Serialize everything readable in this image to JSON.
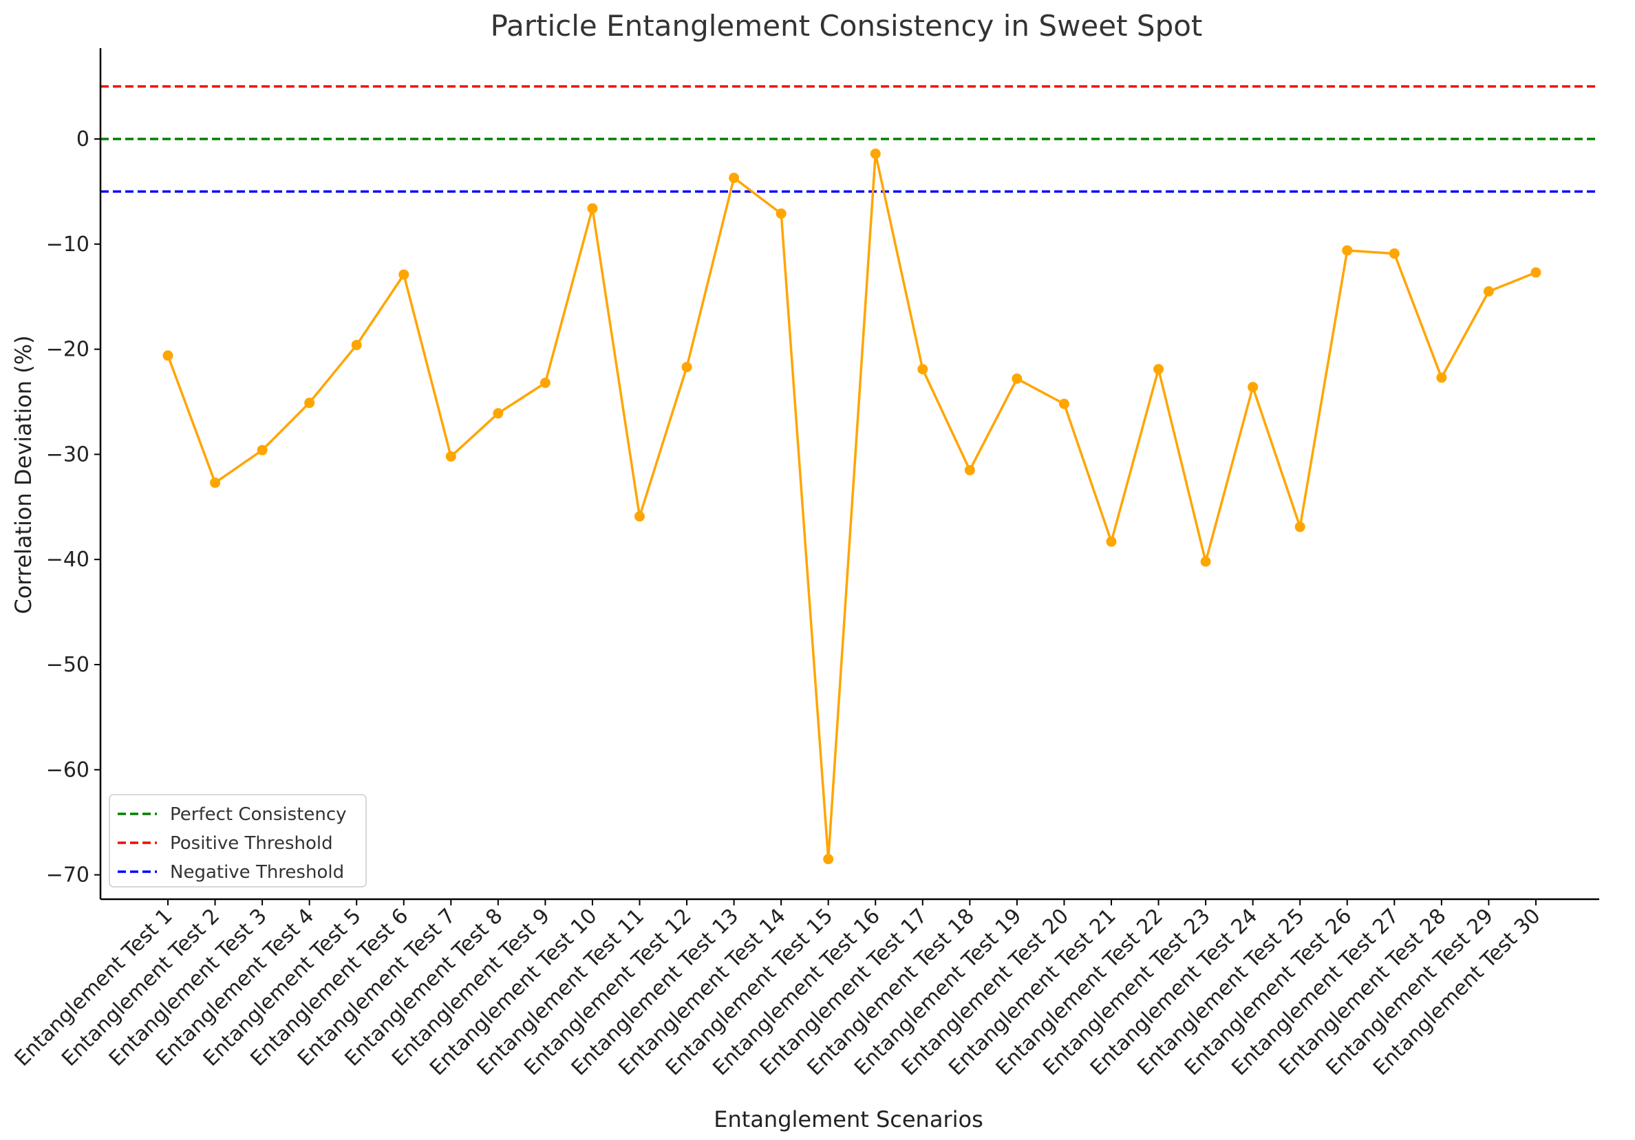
{
  "chart_data": {
    "type": "line",
    "title": "Particle Entanglement Consistency in Sweet Spot",
    "xlabel": "Entanglement Scenarios",
    "ylabel": "Correlation Deviation (%)",
    "categories": [
      "Entanglement Test 1",
      "Entanglement Test 2",
      "Entanglement Test 3",
      "Entanglement Test 4",
      "Entanglement Test 5",
      "Entanglement Test 6",
      "Entanglement Test 7",
      "Entanglement Test 8",
      "Entanglement Test 9",
      "Entanglement Test 10",
      "Entanglement Test 11",
      "Entanglement Test 12",
      "Entanglement Test 13",
      "Entanglement Test 14",
      "Entanglement Test 15",
      "Entanglement Test 16",
      "Entanglement Test 17",
      "Entanglement Test 18",
      "Entanglement Test 19",
      "Entanglement Test 20",
      "Entanglement Test 21",
      "Entanglement Test 22",
      "Entanglement Test 23",
      "Entanglement Test 24",
      "Entanglement Test 25",
      "Entanglement Test 26",
      "Entanglement Test 27",
      "Entanglement Test 28",
      "Entanglement Test 29",
      "Entanglement Test 30"
    ],
    "series": [
      {
        "values": [
          -20.6,
          -32.7,
          -29.6,
          -25.1,
          -19.6,
          -12.9,
          -30.2,
          -26.1,
          -23.2,
          -6.6,
          -35.9,
          -21.7,
          -3.7,
          -7.1,
          -68.5,
          -1.4,
          -21.9,
          -31.5,
          -22.8,
          -25.2,
          -38.3,
          -21.9,
          -40.2,
          -23.6,
          -36.9,
          -10.6,
          -10.9,
          -22.7,
          -14.5,
          -12.7
        ],
        "color": "#FFA500",
        "marker": "circle"
      }
    ],
    "reference_lines": [
      {
        "name": "Perfect Consistency",
        "value": 0,
        "color": "#008000",
        "style": "dashed"
      },
      {
        "name": "Positive Threshold",
        "value": 5,
        "color": "#FF0000",
        "style": "dashed"
      },
      {
        "name": "Negative Threshold",
        "value": -5,
        "color": "#0000FF",
        "style": "dashed"
      }
    ],
    "ylim": [
      -72,
      8.5
    ],
    "yticks": [
      0,
      -10,
      -20,
      -30,
      -40,
      -50,
      -60,
      -70
    ],
    "ytick_labels": [
      "0",
      "−10",
      "−20",
      "−30",
      "−40",
      "−50",
      "−60",
      "−70"
    ],
    "grid": false,
    "legend": {
      "position": "lower-left",
      "entries": [
        "Perfect Consistency",
        "Positive Threshold",
        "Negative Threshold"
      ]
    }
  }
}
